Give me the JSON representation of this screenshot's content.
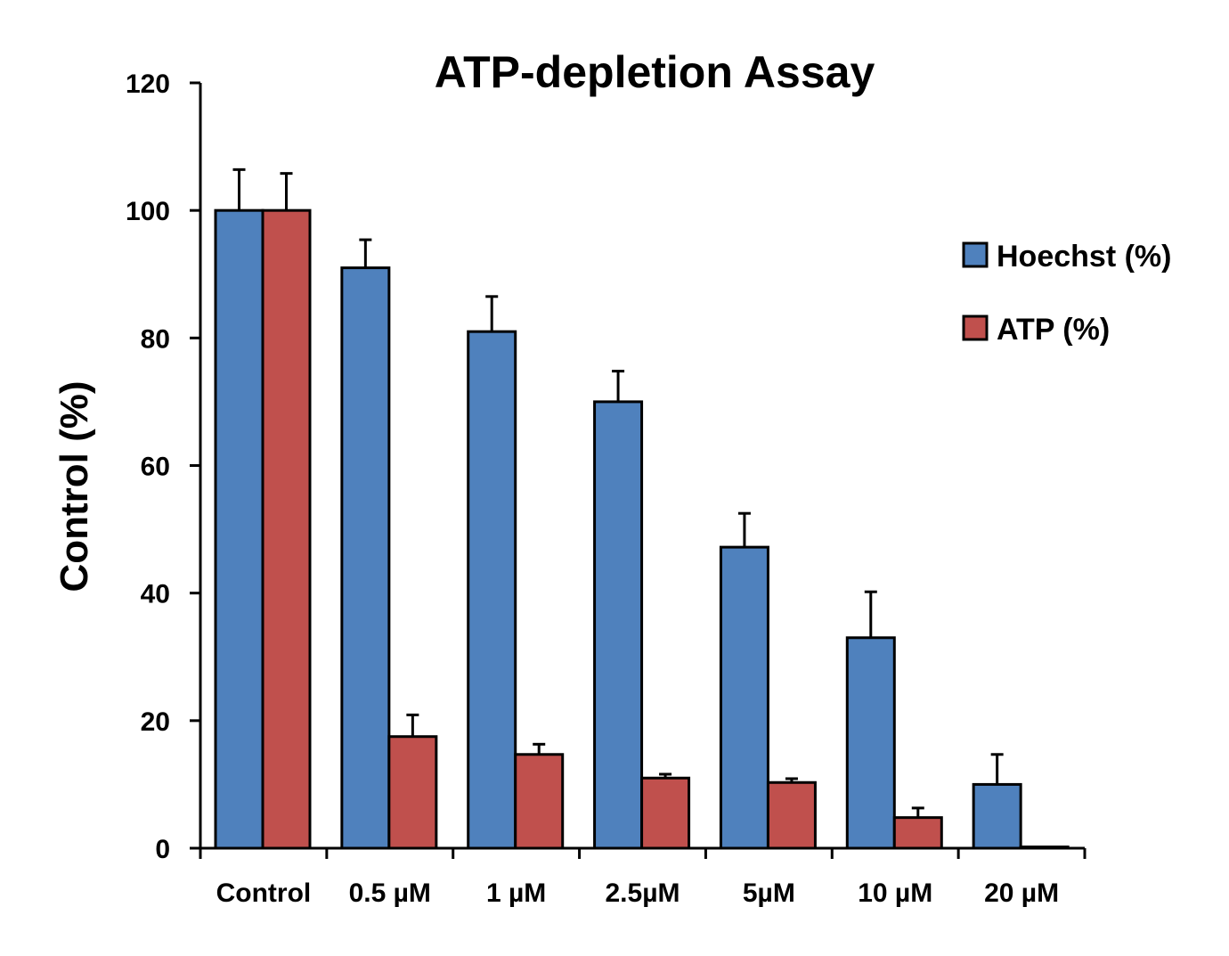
{
  "chart_data": {
    "type": "bar",
    "title": "ATP-depletion Assay",
    "xlabel": "",
    "ylabel": "Control (%)",
    "ylim": [
      0,
      120
    ],
    "yticks": [
      "0",
      "20",
      "40",
      "60",
      "80",
      "100",
      "120"
    ],
    "categories": [
      "Control",
      "0.5 µM",
      "1 µM",
      "2.5µM",
      "5µM",
      "10 µM",
      "20 µM"
    ],
    "series": [
      {
        "name": "Hoechst (%)",
        "color": "#4f81bd",
        "values": [
          100,
          91,
          81,
          70,
          47.2,
          33,
          10
        ],
        "errors": [
          6.4,
          4.4,
          5.5,
          4.8,
          5.3,
          7.2,
          4.7
        ]
      },
      {
        "name": "ATP (%)",
        "color": "#c0504d",
        "values": [
          100,
          17.5,
          14.7,
          11,
          10.3,
          4.8,
          0.2
        ],
        "errors": [
          5.8,
          3.4,
          1.6,
          0.6,
          0.6,
          1.5,
          0
        ]
      }
    ],
    "legend_position": "right",
    "grid": false
  }
}
